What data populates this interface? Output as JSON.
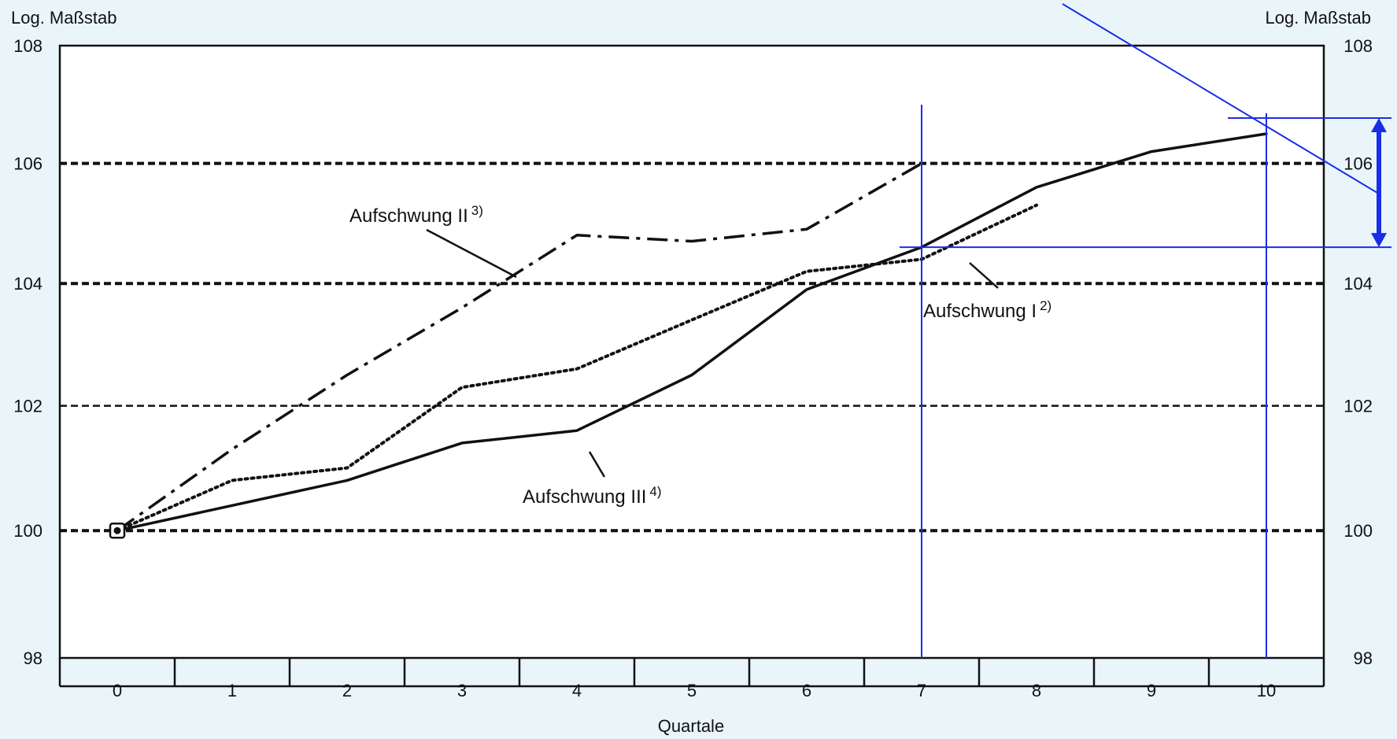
{
  "chart_data": {
    "type": "line",
    "xlabel": "Quartale",
    "ylabel_left": "Log. Maßstab",
    "ylabel_right": "Log. Maßstab",
    "y_scale": "log",
    "xlim": [
      -0.5,
      10.5
    ],
    "ylim": [
      98,
      108
    ],
    "x_ticks": [
      "0",
      "1",
      "2",
      "3",
      "4",
      "5",
      "6",
      "7",
      "8",
      "9",
      "10"
    ],
    "y_ticks": [
      "98",
      "100",
      "102",
      "104",
      "106",
      "108"
    ],
    "grid": "horizontal dashed at 100, 102, 104, 106",
    "legend": "none",
    "series": [
      {
        "name": "Aufschwung I",
        "footnote": "2)",
        "style": "dotted",
        "x": [
          0,
          1,
          2,
          3,
          4,
          5,
          6,
          7,
          8
        ],
        "values": [
          100,
          100.8,
          101.0,
          102.3,
          102.6,
          103.4,
          104.2,
          104.4,
          105.3
        ]
      },
      {
        "name": "Aufschwung II",
        "footnote": "3)",
        "style": "dash-dot",
        "x": [
          0,
          1,
          2,
          3,
          4,
          5,
          6,
          7
        ],
        "values": [
          100,
          101.3,
          102.5,
          103.6,
          104.8,
          104.7,
          104.9,
          106.0
        ]
      },
      {
        "name": "Aufschwung III",
        "footnote": "4)",
        "style": "solid",
        "x": [
          0,
          1,
          2,
          3,
          4,
          5,
          6,
          7,
          8,
          9,
          10
        ],
        "values": [
          100,
          100.4,
          100.8,
          101.4,
          101.6,
          102.5,
          103.9,
          104.6,
          105.6,
          106.2,
          106.5
        ]
      }
    ],
    "annotations": {
      "color": "#1a2ee8",
      "vertical_lines_at_x": [
        7,
        10
      ],
      "horizontal_marker_values": [
        104.6,
        106.5
      ],
      "double_arrow_span": [
        104.6,
        106.5
      ]
    }
  }
}
